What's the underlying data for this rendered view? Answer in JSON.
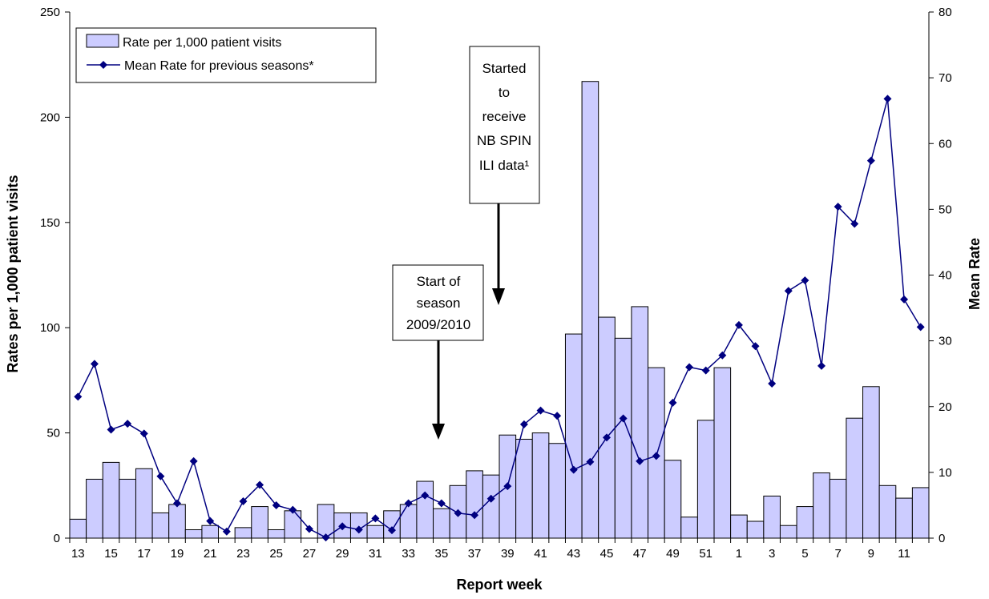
{
  "chart_data": {
    "type": "bar",
    "xlabel": "Report week",
    "ylabel": "Rates per 1,000 patient visits",
    "y2label": "Mean Rate",
    "ylim": [
      0,
      250
    ],
    "y2lim": [
      0,
      80
    ],
    "yticks": [
      "0",
      "50",
      "100",
      "150",
      "200",
      "250"
    ],
    "y2ticks": [
      "0",
      "10",
      "20",
      "30",
      "40",
      "50",
      "60",
      "70",
      "80"
    ],
    "grid": false,
    "legend_position": "top-left",
    "categories": [
      "13",
      "14",
      "15",
      "16",
      "17",
      "18",
      "19",
      "20",
      "21",
      "22",
      "23",
      "24",
      "25",
      "26",
      "27",
      "28",
      "29",
      "30",
      "31",
      "32",
      "33",
      "34",
      "35",
      "36",
      "37",
      "38",
      "39",
      "40",
      "41",
      "42",
      "43",
      "44",
      "45",
      "46",
      "47",
      "48",
      "49",
      "50",
      "51",
      "52",
      "1",
      "2",
      "3",
      "4",
      "5",
      "6",
      "7",
      "8",
      "9",
      "10",
      "11",
      "12"
    ],
    "xtick_labels": [
      "13",
      "15",
      "17",
      "19",
      "21",
      "23",
      "25",
      "27",
      "29",
      "31",
      "33",
      "35",
      "37",
      "39",
      "41",
      "43",
      "45",
      "47",
      "49",
      "51",
      "1",
      "3",
      "5",
      "7",
      "9",
      "11"
    ],
    "series": [
      {
        "name": "Rate per 1,000 patient visits",
        "type": "bar",
        "axis": "left",
        "color": "#ccccff",
        "values": [
          9,
          28,
          36,
          28,
          33,
          12,
          16,
          4,
          6,
          0,
          5,
          15,
          4,
          13,
          0,
          16,
          12,
          12,
          6,
          13,
          16,
          27,
          14,
          25,
          32,
          30,
          49,
          47,
          50,
          45,
          97,
          217,
          105,
          95,
          110,
          81,
          37,
          10,
          56,
          81,
          11,
          8,
          20,
          6,
          15,
          31,
          28,
          57,
          72,
          25,
          19,
          24
        ]
      },
      {
        "name": "Mean Rate for previous seasons*",
        "type": "line",
        "axis": "right",
        "color": "#000080",
        "values": [
          21.5,
          26.5,
          16.5,
          17.4,
          15.9,
          9.4,
          5.3,
          11.7,
          2.6,
          1.0,
          5.6,
          8.1,
          5.0,
          4.3,
          1.4,
          0.1,
          1.8,
          1.3,
          3.0,
          1.2,
          5.3,
          6.5,
          5.3,
          3.8,
          3.5,
          6.0,
          7.9,
          17.3,
          19.4,
          18.6,
          10.4,
          11.6,
          15.3,
          18.2,
          11.7,
          12.5,
          20.6,
          26.0,
          25.5,
          27.8,
          32.4,
          29.2,
          23.5,
          37.6,
          39.2,
          26.2,
          50.4,
          47.8,
          57.4,
          66.8,
          36.3,
          32.1
        ]
      }
    ],
    "annotations": [
      {
        "lines": [
          "Start of",
          "season",
          "2009/2010"
        ],
        "arrow_to_week": "35"
      },
      {
        "lines": [
          "Started",
          "to",
          "receive",
          "NB SPIN",
          "ILI data¹"
        ],
        "arrow_to_week": "39"
      }
    ]
  }
}
